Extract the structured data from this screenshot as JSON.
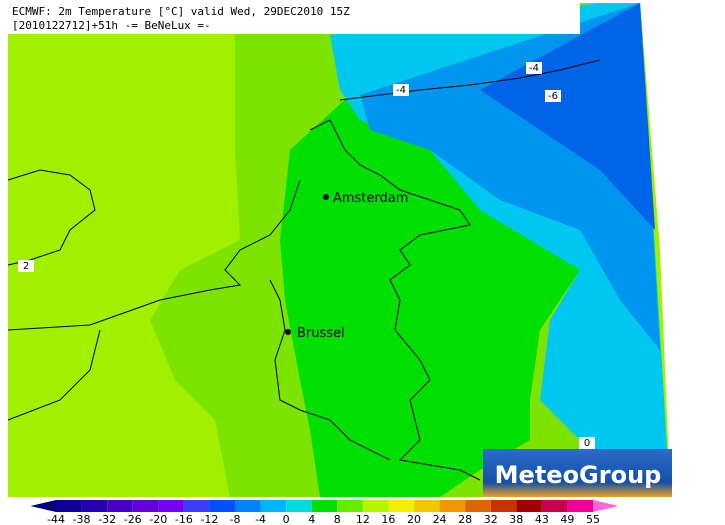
{
  "header": {
    "line1": "ECMWF: 2m Temperature [°C] valid Wed, 29DEC2010 15Z",
    "line2": "[2010122712]+51h -= BeNeLux =-"
  },
  "cities": [
    {
      "name": "Amsterdam"
    },
    {
      "name": "Brussel"
    }
  ],
  "contour_labels": [
    -4,
    -4,
    -6,
    2,
    0
  ],
  "logo": "MeteoGroup",
  "colorbar": {
    "ticks": [
      -44,
      -38,
      -32,
      -26,
      -20,
      -16,
      -12,
      -8,
      -4,
      0,
      4,
      8,
      12,
      16,
      20,
      24,
      28,
      32,
      38,
      43,
      49,
      55
    ],
    "colors": [
      "#000078",
      "#10009a",
      "#2800b4",
      "#4600c8",
      "#6400dc",
      "#7800f0",
      "#3c3cff",
      "#0050ff",
      "#0082ff",
      "#00b4ff",
      "#00dcdc",
      "#00e000",
      "#64ec00",
      "#b4f500",
      "#f0f000",
      "#f0c800",
      "#f09600",
      "#e06400",
      "#c83200",
      "#a00000",
      "#c80050",
      "#f00096",
      "#ff64dc"
    ]
  }
}
